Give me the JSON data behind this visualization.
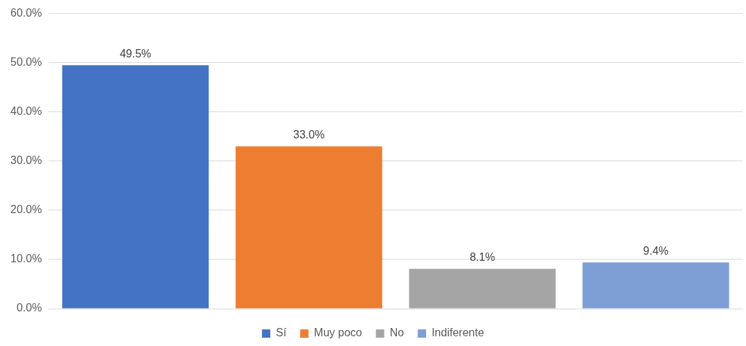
{
  "chart_data": {
    "type": "bar",
    "categories": [
      null
    ],
    "series": [
      {
        "name": "Sí",
        "color": "#4472c4",
        "values": [
          49.5
        ],
        "value_labels": [
          "49.5%"
        ]
      },
      {
        "name": "Muy poco",
        "color": "#ed7d31",
        "values": [
          33.0
        ],
        "value_labels": [
          "33.0%"
        ]
      },
      {
        "name": "No",
        "color": "#a5a5a5",
        "values": [
          8.1
        ],
        "value_labels": [
          "8.1%"
        ]
      },
      {
        "name": "Indiferente",
        "color": "#7e9fd6",
        "values": [
          9.4
        ],
        "value_labels": [
          "9.4%"
        ]
      }
    ],
    "ylim": [
      0,
      60
    ],
    "yticks": [
      {
        "value": 0,
        "label": "0.0%"
      },
      {
        "value": 10,
        "label": "10.0%"
      },
      {
        "value": 20,
        "label": "20.0%"
      },
      {
        "value": 30,
        "label": "30.0%"
      },
      {
        "value": 40,
        "label": "40.0%"
      },
      {
        "value": 50,
        "label": "50.0%"
      },
      {
        "value": 60,
        "label": "60.0%"
      }
    ],
    "grid": "y",
    "legend": "bottom"
  }
}
